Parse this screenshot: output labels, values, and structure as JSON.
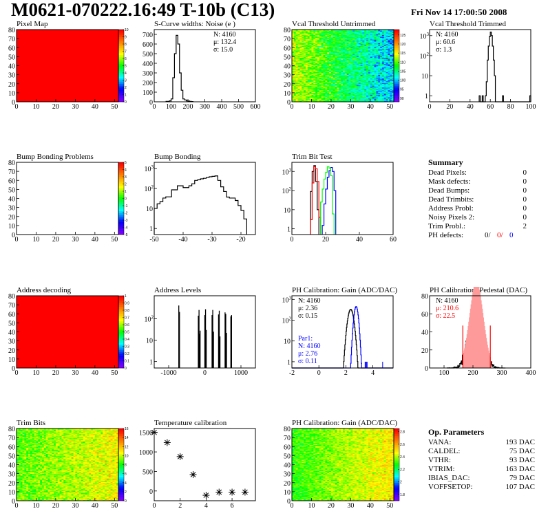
{
  "header": {
    "title": "M0621-070222.16:49 T-10b (C13)",
    "date": "Fri Nov 14 17:00:50 2008"
  },
  "colors": {
    "palette": [
      "#7f00ff",
      "#0000ff",
      "#00ffff",
      "#00ff00",
      "#ffff00",
      "#ff8000",
      "#ff0000"
    ],
    "black": "#000000",
    "red": "#ff0000",
    "blue": "#0000ff",
    "green": "#00ff00"
  },
  "chart_data": [
    {
      "id": "pixel-map",
      "title": "Pixel Map",
      "type": "heatmap",
      "xlim": [
        0,
        52
      ],
      "ylim": [
        0,
        80
      ],
      "xticks": [
        0,
        10,
        20,
        30,
        40,
        50
      ],
      "yticks": [
        0,
        10,
        20,
        30,
        40,
        50,
        60,
        70,
        80
      ],
      "zlim": [
        0,
        10
      ],
      "zticks": [
        0,
        1,
        2,
        3,
        4,
        5,
        6,
        7,
        8,
        9,
        10
      ],
      "fill": {
        "uniform": 10
      }
    },
    {
      "id": "s-curve-noise",
      "title": "S-Curve widths: Noise (e )",
      "type": "hist",
      "xlim": [
        0,
        600
      ],
      "ylim": [
        0,
        750
      ],
      "log": false,
      "xticks": [
        0,
        100,
        200,
        300,
        400,
        500,
        600
      ],
      "yticks": [
        0,
        100,
        200,
        300,
        400,
        500,
        600,
        700
      ],
      "stats": {
        "pos": "right",
        "lines": [
          {
            "text": "N: 4160",
            "color": "#000000"
          },
          {
            "text": "μ: 132.4",
            "color": "#000000"
          },
          {
            "text": "σ: 15.0",
            "color": "#000000"
          }
        ]
      },
      "series": [
        {
          "color": "#000000",
          "start": 70,
          "width": 10,
          "values": [
            5,
            5,
            10,
            30,
            250,
            500,
            690,
            600,
            300,
            120,
            30,
            20,
            10,
            8,
            5,
            3
          ]
        }
      ]
    },
    {
      "id": "vcal-untrimmed",
      "title": "Vcal Threshold Untrimmed",
      "type": "heatmap",
      "xlim": [
        0,
        52
      ],
      "ylim": [
        0,
        80
      ],
      "xticks": [
        0,
        10,
        20,
        30,
        40,
        50
      ],
      "yticks": [
        0,
        10,
        20,
        30,
        40,
        50,
        60,
        70,
        80
      ],
      "zlim": [
        88,
        128
      ],
      "zticks": [
        90,
        95,
        100,
        105,
        110,
        115,
        120,
        125
      ],
      "fill": {
        "z_left": 113,
        "z_right": 100,
        "z_spread": 4
      }
    },
    {
      "id": "vcal-trimmed",
      "title": "Vcal Threshold Trimmed",
      "type": "hist",
      "xlim": [
        0,
        100
      ],
      "ylim": [
        0.5,
        2000
      ],
      "log": true,
      "xticks": [
        0,
        20,
        40,
        60,
        80,
        100
      ],
      "yticks": [
        1,
        10,
        100,
        1000
      ],
      "stats": {
        "pos": "left",
        "lines": [
          {
            "text": "N: 4160",
            "color": "#000000"
          },
          {
            "text": "μ: 60.6",
            "color": "#000000"
          },
          {
            "text": "σ:  1.3",
            "color": "#000000"
          }
        ]
      },
      "series": [
        {
          "color": "#000000",
          "start": 49,
          "width": 1,
          "values": [
            1,
            0,
            0,
            1,
            0,
            0,
            1,
            5,
            60,
            300,
            900,
            1500,
            1000,
            300,
            60,
            10,
            0,
            0,
            0,
            0,
            0,
            0,
            0,
            1,
            0,
            0,
            0,
            0,
            0,
            0,
            0,
            0,
            0,
            0,
            0,
            0,
            0,
            0,
            0,
            0,
            0,
            0,
            0,
            0,
            0,
            0,
            0,
            0,
            0,
            0,
            1
          ]
        }
      ]
    },
    {
      "id": "bump-bonding-problems",
      "title": "Bump Bonding Problems",
      "type": "heatmap",
      "xlim": [
        0,
        52
      ],
      "ylim": [
        0,
        80
      ],
      "xticks": [
        0,
        10,
        20,
        30,
        40,
        50
      ],
      "yticks": [
        0,
        10,
        20,
        30,
        40,
        50,
        60,
        70,
        80
      ],
      "zlim": [
        -5,
        5
      ],
      "zticks": [
        -5,
        -4,
        -3,
        -2,
        -1,
        0,
        1,
        2,
        3,
        4,
        5
      ],
      "fill": {}
    },
    {
      "id": "bump-bonding",
      "title": "Bump Bonding",
      "type": "hist",
      "xlim": [
        -50,
        -15
      ],
      "ylim": [
        0.5,
        2000
      ],
      "log": true,
      "xticks": [
        -50,
        -40,
        -30,
        -20
      ],
      "yticks": [
        1,
        10,
        100,
        1000
      ],
      "series": [
        {
          "color": "#000000",
          "start": -50,
          "width": 1,
          "values": [
            10,
            17,
            22,
            33,
            38,
            38,
            85,
            85,
            135,
            135,
            110,
            110,
            135,
            170,
            250,
            270,
            300,
            320,
            350,
            380,
            400,
            420,
            250,
            120,
            70,
            37,
            33,
            33,
            25,
            14,
            8,
            3
          ]
        }
      ]
    },
    {
      "id": "trim-bit-test",
      "title": "Trim Bit Test",
      "type": "hist",
      "xlim": [
        0,
        60
      ],
      "ylim": [
        0.5,
        3000
      ],
      "log": true,
      "xticks": [
        0,
        20,
        40,
        60
      ],
      "yticks": [
        1,
        10,
        100,
        1000
      ],
      "series": [
        {
          "color": "#000000",
          "start": 11,
          "width": 1,
          "values": [
            90,
            1000,
            2000,
            300,
            10
          ]
        },
        {
          "color": "#ff0000",
          "start": 11,
          "width": 1,
          "values": [
            3,
            250,
            1800,
            1400,
            300,
            4
          ]
        },
        {
          "color": "#0000ff",
          "start": 18,
          "width": 1,
          "values": [
            1.5,
            20,
            120,
            500,
            1100,
            1600,
            1000,
            100
          ]
        },
        {
          "color": "#00ff00",
          "start": 17,
          "width": 1,
          "values": [
            25,
            120,
            400,
            900,
            1800,
            1500,
            600,
            6
          ]
        }
      ]
    },
    {
      "id": "address-decoding",
      "title": "Address decoding",
      "type": "heatmap",
      "xlim": [
        0,
        52
      ],
      "ylim": [
        0,
        80
      ],
      "xticks": [
        0,
        10,
        20,
        30,
        40,
        50
      ],
      "yticks": [
        0,
        10,
        20,
        30,
        40,
        50,
        60,
        70,
        80
      ],
      "zlim": [
        0,
        1
      ],
      "zticks": [
        0,
        0.1,
        0.2,
        0.3,
        0.4,
        0.5,
        0.6,
        0.7,
        0.8,
        0.9,
        1
      ],
      "fill": {
        "uniform": 1
      }
    },
    {
      "id": "address-levels",
      "title": "Address Levels",
      "type": "spikes",
      "xlim": [
        -1400,
        1400
      ],
      "ylim": [
        0.5,
        1200
      ],
      "log": true,
      "xticks": [
        -1000,
        0,
        1000
      ],
      "yticks": [
        1,
        10,
        100
      ],
      "spikes": [
        [
          -720,
          420
        ],
        [
          -700,
          210
        ],
        [
          -180,
          140
        ],
        [
          -160,
          260
        ],
        [
          -140,
          20
        ],
        [
          -130,
          28
        ],
        [
          0,
          150
        ],
        [
          20,
          280
        ],
        [
          40,
          30
        ],
        [
          200,
          150
        ],
        [
          220,
          260
        ],
        [
          240,
          25
        ],
        [
          380,
          160
        ],
        [
          400,
          240
        ],
        [
          420,
          15
        ],
        [
          560,
          200
        ],
        [
          580,
          170
        ],
        [
          600,
          22
        ],
        [
          720,
          130
        ],
        [
          740,
          150
        ]
      ]
    },
    {
      "id": "ph-gain",
      "title": "PH Calibration: Gain (ADC/DAC)",
      "type": "hist",
      "xlim": [
        -2,
        5.5
      ],
      "ylim": [
        0.5,
        1500
      ],
      "log": true,
      "xticks": [
        -2,
        0,
        2,
        4
      ],
      "yticks": [
        1,
        10,
        100,
        1000
      ],
      "stats": {
        "pos": "left",
        "lines": [
          {
            "text": "N: 4160",
            "color": "#000000"
          },
          {
            "text": "μ: 2.36",
            "color": "#000000"
          },
          {
            "text": "σ: 0.15",
            "color": "#000000"
          }
        ]
      },
      "stats2": {
        "lines": [
          {
            "text": "Par1:",
            "color": "#0000ff"
          },
          {
            "text": "N: 4160",
            "color": "#0000ff"
          },
          {
            "text": "μ: 2.76",
            "color": "#0000ff"
          },
          {
            "text": "σ: 0.11",
            "color": "#0000ff"
          }
        ]
      },
      "series": [
        {
          "color": "#000000",
          "gauss": {
            "n": 4160,
            "mu": 2.36,
            "sigma": 0.15,
            "width": 0.03
          }
        },
        {
          "color": "#0000ff",
          "gauss": {
            "n": 4160,
            "mu": 2.76,
            "sigma": 0.11,
            "width": 0.03
          },
          "extra": [
            [
              3.4,
              1
            ],
            [
              3.45,
              1
            ],
            [
              3.5,
              1
            ],
            [
              3.55,
              1
            ],
            [
              4.7,
              1
            ]
          ]
        }
      ]
    },
    {
      "id": "ph-pedestal",
      "title": "PH Calibration: Pedestal (DAC)",
      "type": "hist",
      "xlim": [
        50,
        400
      ],
      "ylim": [
        0,
        80
      ],
      "log": false,
      "xticks": [
        100,
        200,
        300,
        400
      ],
      "yticks": [
        0,
        20,
        40,
        60,
        80
      ],
      "stats": {
        "pos": "left",
        "lines": [
          {
            "text": "N: 4160",
            "color": "#000000"
          },
          {
            "text": "μ: 210.6",
            "color": "#ff0000"
          },
          {
            "text": "σ: 22.5",
            "color": "#ff0000"
          }
        ]
      },
      "series": [
        {
          "color": "#000000",
          "gauss": {
            "n": 4160,
            "mu": 210.6,
            "sigma": 22.5,
            "width": 1
          },
          "noise": true
        },
        {
          "color": "#ff0000",
          "fill": true,
          "gauss": {
            "n": 2900,
            "mu": 212,
            "sigma": 24,
            "width": 2
          },
          "range": [
            165,
            260
          ],
          "edge": 47
        }
      ]
    },
    {
      "id": "trim-bits",
      "title": "Trim Bits",
      "type": "heatmap",
      "xlim": [
        0,
        52
      ],
      "ylim": [
        0,
        80
      ],
      "xticks": [
        0,
        10,
        20,
        30,
        40,
        50
      ],
      "yticks": [
        0,
        10,
        20,
        30,
        40,
        50,
        60,
        70,
        80
      ],
      "zlim": [
        0,
        16
      ],
      "zticks": [
        0,
        2,
        4,
        6,
        8,
        10,
        12,
        14,
        16
      ],
      "fill": {
        "z_left": 8.8,
        "z_right": 10.8,
        "z_spread": 1.3
      }
    },
    {
      "id": "temperature-calibration",
      "title": "Temperature calibration",
      "type": "scatter",
      "xlim": [
        0,
        7.8
      ],
      "ylim": [
        -250,
        1600
      ],
      "xticks": [
        0,
        2,
        4,
        6
      ],
      "yticks": [
        0,
        500,
        1000,
        1500
      ],
      "points": [
        [
          0,
          1500
        ],
        [
          1,
          1240
        ],
        [
          2,
          880
        ],
        [
          3,
          420
        ],
        [
          4,
          -110
        ],
        [
          5,
          -30
        ],
        [
          6,
          -30
        ],
        [
          7,
          -30
        ]
      ]
    },
    {
      "id": "ph-gain-map",
      "title": "PH Calibration: Gain (ADC/DAC)",
      "type": "heatmap",
      "xlim": [
        0,
        52
      ],
      "ylim": [
        0,
        80
      ],
      "xticks": [
        0,
        10,
        20,
        30,
        40,
        50
      ],
      "yticks": [
        0,
        10,
        20,
        30,
        40,
        50,
        60,
        70,
        80
      ],
      "zlim": [
        1.7,
        2.85
      ],
      "zticks": [
        1.8,
        2,
        2.2,
        2.4,
        2.6,
        2.8
      ],
      "fill": {
        "z_left": 2.3,
        "z_right": 2.5,
        "z_spread": 0.08
      }
    }
  ],
  "summary": {
    "title": "Summary",
    "rows": [
      {
        "label": "Dead Pixels:",
        "value": "0"
      },
      {
        "label": "Mask defects:",
        "value": "0"
      },
      {
        "label": "Dead Bumps:",
        "value": "0"
      },
      {
        "label": "Dead Trimbits:",
        "value": "0"
      },
      {
        "label": "Address Probl:",
        "value": "0"
      },
      {
        "label": "Noisy Pixels 2:",
        "value": "0"
      },
      {
        "label": "Trim Probl.:",
        "value": "2"
      }
    ],
    "ph_defects": {
      "label": "PH defects:",
      "v1": "0/",
      "v2": "0/",
      "v3": "0"
    }
  },
  "op_parameters": {
    "title": "Op. Parameters",
    "rows": [
      {
        "label": "VANA:",
        "value": "193 DAC"
      },
      {
        "label": "CALDEL:",
        "value": "75 DAC"
      },
      {
        "label": "VTHR:",
        "value": "93 DAC"
      },
      {
        "label": "VTRIM:",
        "value": "163 DAC"
      },
      {
        "label": "IBIAS_DAC:",
        "value": "79 DAC"
      },
      {
        "label": "VOFFSETOP:",
        "value": "107 DAC"
      }
    ]
  }
}
